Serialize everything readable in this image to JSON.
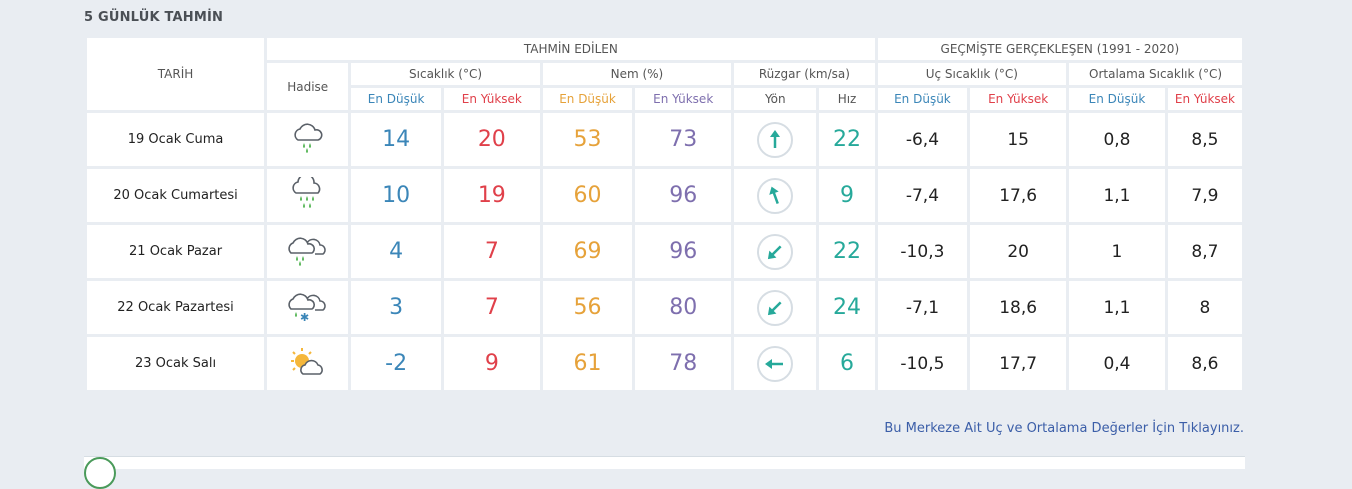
{
  "section_title": "5 GÜNLÜK TAHMİN",
  "header": {
    "tarih": "TARİH",
    "forecast_group": "TAHMİN EDİLEN",
    "history_group": "GEÇMİŞTE GERÇEKLEŞEN (1991 - 2020)",
    "hadise": "Hadise",
    "sicaklik": "Sıcaklık (°C)",
    "nem": "Nem (%)",
    "ruzgar": "Rüzgar (km/sa)",
    "uc_sicaklik": "Uç Sıcaklık (°C)",
    "ortalama_sicaklik": "Ortalama Sıcaklık (°C)",
    "en_dusuk": "En Düşük",
    "en_yuksek": "En Yüksek",
    "yon": "Yön",
    "hiz": "Hız"
  },
  "days": [
    {
      "date": "19 Ocak Cuma",
      "icon": "rain-cloud-icon",
      "temp_low": "14",
      "temp_high": "20",
      "hum_low": "53",
      "hum_high": "73",
      "wind_dir": "north",
      "wind_speed": "22",
      "ext_low": "-6,4",
      "ext_high": "15",
      "avg_low": "0,8",
      "avg_high": "8,5"
    },
    {
      "date": "20 Ocak Cumartesi",
      "icon": "heavy-rain-cloud-icon",
      "temp_low": "10",
      "temp_high": "19",
      "hum_low": "60",
      "hum_high": "96",
      "wind_dir": "north-northwest",
      "wind_speed": "9",
      "ext_low": "-7,4",
      "ext_high": "17,6",
      "avg_low": "1,1",
      "avg_high": "7,9"
    },
    {
      "date": "21 Ocak Pazar",
      "icon": "rain-showers-cloud-icon",
      "temp_low": "4",
      "temp_high": "7",
      "hum_low": "69",
      "hum_high": "96",
      "wind_dir": "southwest",
      "wind_speed": "22",
      "ext_low": "-10,3",
      "ext_high": "20",
      "avg_low": "1",
      "avg_high": "8,7"
    },
    {
      "date": "22 Ocak Pazartesi",
      "icon": "sleet-cloud-icon",
      "temp_low": "3",
      "temp_high": "7",
      "hum_low": "56",
      "hum_high": "80",
      "wind_dir": "southwest",
      "wind_speed": "24",
      "ext_low": "-7,1",
      "ext_high": "18,6",
      "avg_low": "1,1",
      "avg_high": "8"
    },
    {
      "date": "23 Ocak Salı",
      "icon": "partly-cloudy-icon",
      "temp_low": "-2",
      "temp_high": "9",
      "hum_low": "61",
      "hum_high": "78",
      "wind_dir": "west",
      "wind_speed": "6",
      "ext_low": "-10,5",
      "ext_high": "17,7",
      "avg_low": "0,4",
      "avg_high": "8,6"
    }
  ],
  "link_text": "Bu Merkeze Ait Uç ve Ortalama Değerler İçin Tıklayınız.",
  "colors": {
    "low": "#3b86b8",
    "high": "#e0404a",
    "hum_low": "#e6a23a",
    "hum_high": "#7e6fae",
    "wind": "#26a99a"
  }
}
